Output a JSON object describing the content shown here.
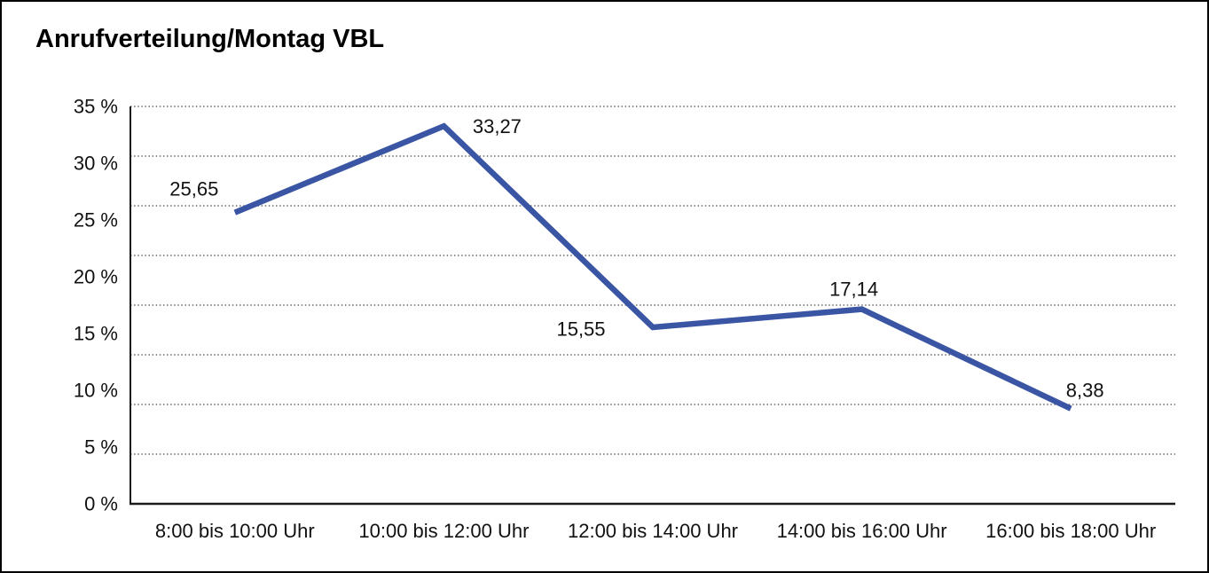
{
  "chart_data": {
    "type": "line",
    "title": "Anrufverteilung/Montag VBL",
    "categories": [
      "8:00 bis 10:00 Uhr",
      "10:00 bis 12:00 Uhr",
      "12:00 bis 14:00 Uhr",
      "14:00 bis 16:00 Uhr",
      "16:00 bis 18:00 Uhr"
    ],
    "series": [
      {
        "name": "Anrufverteilung Montag VBL",
        "values": [
          25.65,
          33.27,
          15.55,
          17.14,
          8.38
        ],
        "value_labels": [
          "25,65",
          "33,27",
          "15,55",
          "17,14",
          "8,38"
        ]
      }
    ],
    "xlabel": "",
    "ylabel": "",
    "ylim": [
      0,
      35
    ],
    "y_tick_step": 5,
    "y_tick_labels_top_to_bottom": [
      "35 %",
      "30 %",
      "25 %",
      "20 %",
      "15 %",
      "10 %",
      "5 %",
      "0 %"
    ],
    "grid": "horizontal-dotted",
    "legend_position": "none",
    "decimal_separator": ",",
    "colors": {
      "series_line": "#3A55A4",
      "gridline": "#4a4a4a",
      "axis": "#1a1a1a",
      "text": "#111111",
      "background": "#ffffff",
      "frame_border": "#000000"
    }
  }
}
